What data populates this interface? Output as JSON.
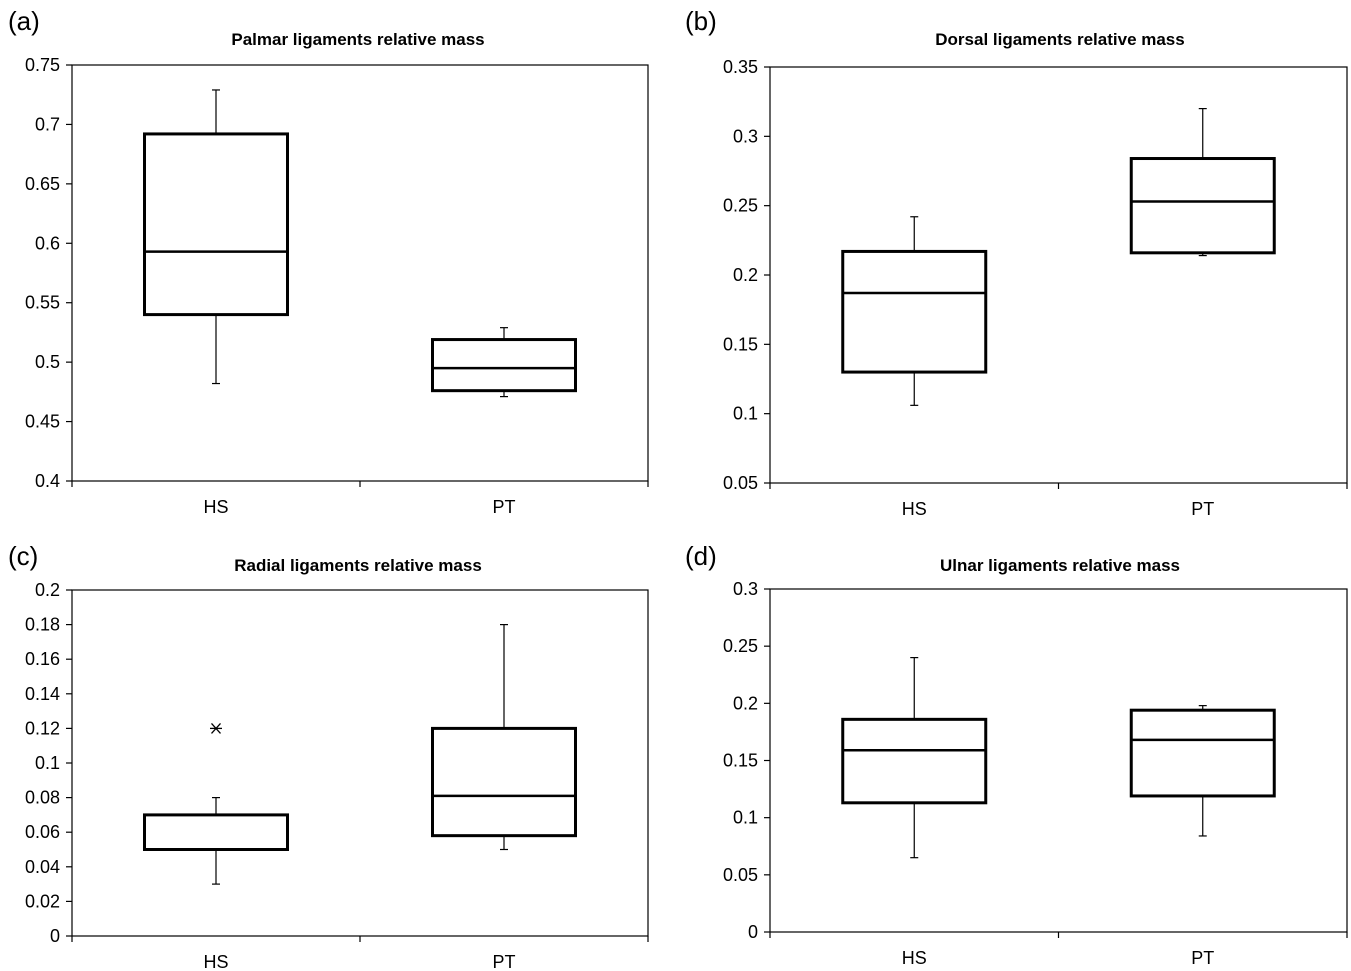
{
  "chart_data": [
    {
      "panel": "(a)",
      "type": "box",
      "title": "Palmar ligaments relative mass",
      "categories": [
        "HS",
        "PT"
      ],
      "ylim": [
        0.4,
        0.75
      ],
      "yticks": [
        0.4,
        0.45,
        0.5,
        0.55,
        0.6,
        0.65,
        0.7,
        0.75
      ],
      "ytick_labels": [
        "0.4",
        "0.45",
        "0.5",
        "0.55",
        "0.6",
        "0.65",
        "0.7",
        "0.75"
      ],
      "boxes": [
        {
          "category": "HS",
          "min": 0.482,
          "q1": 0.54,
          "median": 0.593,
          "q3": 0.692,
          "max": 0.729,
          "outliers": []
        },
        {
          "category": "PT",
          "min": 0.471,
          "q1": 0.476,
          "median": 0.495,
          "q3": 0.519,
          "max": 0.529,
          "outliers": []
        }
      ]
    },
    {
      "panel": "(b)",
      "type": "box",
      "title": "Dorsal ligaments relative mass",
      "categories": [
        "HS",
        "PT"
      ],
      "ylim": [
        0.05,
        0.35
      ],
      "yticks": [
        0.05,
        0.1,
        0.15,
        0.2,
        0.25,
        0.3,
        0.35
      ],
      "ytick_labels": [
        "0.05",
        "0.1",
        "0.15",
        "0.2",
        "0.25",
        "0.3",
        "0.35"
      ],
      "boxes": [
        {
          "category": "HS",
          "min": 0.106,
          "q1": 0.13,
          "median": 0.187,
          "q3": 0.217,
          "max": 0.242,
          "outliers": []
        },
        {
          "category": "PT",
          "min": 0.214,
          "q1": 0.216,
          "median": 0.253,
          "q3": 0.284,
          "max": 0.32,
          "outliers": []
        }
      ]
    },
    {
      "panel": "(c)",
      "type": "box",
      "title": "Radial ligaments relative mass",
      "categories": [
        "HS",
        "PT"
      ],
      "ylim": [
        0,
        0.2
      ],
      "yticks": [
        0,
        0.02,
        0.04,
        0.06,
        0.08,
        0.1,
        0.12,
        0.14,
        0.16,
        0.18,
        0.2
      ],
      "ytick_labels": [
        "0",
        "0.02",
        "0.04",
        "0.06",
        "0.08",
        "0.1",
        "0.12",
        "0.14",
        "0.16",
        "0.18",
        "0.2"
      ],
      "boxes": [
        {
          "category": "HS",
          "min": 0.03,
          "q1": 0.05,
          "median": 0.05,
          "q3": 0.07,
          "max": 0.08,
          "outliers": [
            0.12
          ]
        },
        {
          "category": "PT",
          "min": 0.05,
          "q1": 0.058,
          "median": 0.081,
          "q3": 0.12,
          "max": 0.18,
          "outliers": []
        }
      ]
    },
    {
      "panel": "(d)",
      "type": "box",
      "title": "Ulnar ligaments relative mass",
      "categories": [
        "HS",
        "PT"
      ],
      "ylim": [
        0,
        0.3
      ],
      "yticks": [
        0,
        0.05,
        0.1,
        0.15,
        0.2,
        0.25,
        0.3
      ],
      "ytick_labels": [
        "0",
        "0.05",
        "0.1",
        "0.15",
        "0.2",
        "0.25",
        "0.3"
      ],
      "boxes": [
        {
          "category": "HS",
          "min": 0.065,
          "q1": 0.113,
          "median": 0.159,
          "q3": 0.186,
          "max": 0.24,
          "outliers": []
        },
        {
          "category": "PT",
          "min": 0.084,
          "q1": 0.119,
          "median": 0.168,
          "q3": 0.194,
          "max": 0.198,
          "outliers": []
        }
      ]
    }
  ]
}
